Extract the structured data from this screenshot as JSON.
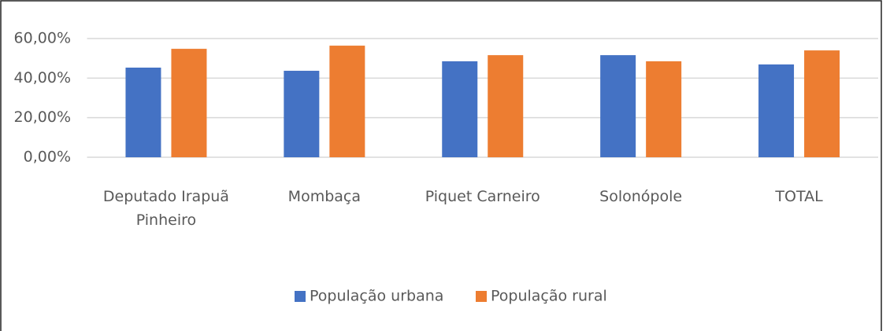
{
  "chart_data": {
    "type": "bar",
    "categories": [
      "Deputado Irapuã Pinheiro",
      "Mombaça",
      "Piquet Carneiro",
      "Solonópole",
      "TOTAL"
    ],
    "series": [
      {
        "name": "População urbana",
        "color": "#4472c4",
        "values": [
          45.3,
          43.7,
          48.5,
          51.6,
          46.9
        ]
      },
      {
        "name": "População rural",
        "color": "#ed7d31",
        "values": [
          54.8,
          56.4,
          51.6,
          48.5,
          54.0
        ]
      }
    ],
    "ylim": [
      0,
      60
    ],
    "yticks": [
      {
        "value": 0,
        "label": "0,00%"
      },
      {
        "value": 20,
        "label": "20,00%"
      },
      {
        "value": 40,
        "label": "40,00%"
      },
      {
        "value": 60,
        "label": "60,00%"
      }
    ],
    "grid": true,
    "legend": "bottom"
  }
}
